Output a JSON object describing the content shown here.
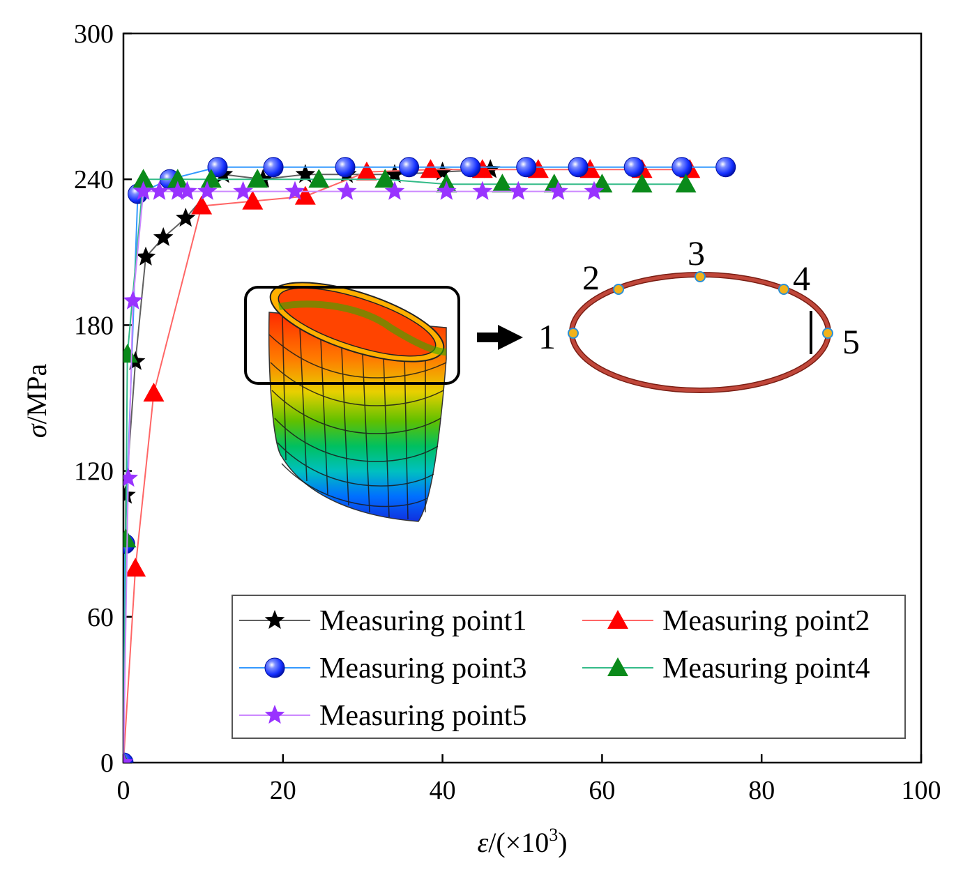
{
  "chart_data": {
    "type": "line",
    "xlabel": {
      "symbol": "ε",
      "prefix": "/(×10",
      "sup": "3",
      "suffix": ")"
    },
    "ylabel": {
      "symbol": "σ",
      "suffix": "/MPa"
    },
    "xlim": [
      0,
      100
    ],
    "ylim": [
      0,
      300
    ],
    "xticks": [
      "0",
      "20",
      "40",
      "60",
      "80",
      "100"
    ],
    "yticks": [
      "0",
      "60",
      "120",
      "180",
      "240",
      "300"
    ],
    "legend_position": "lower-right",
    "series": [
      {
        "name": "Measuring point1",
        "color": "#606060",
        "marker": "star",
        "marker_color": "#000000",
        "x": [
          0,
          0.3,
          1.5,
          2.8,
          5,
          7.8,
          12.5,
          17.5,
          22.8,
          28,
          34,
          40,
          46
        ],
        "y": [
          0,
          110,
          165,
          208,
          216,
          224,
          242,
          240,
          242,
          242,
          242,
          243,
          244
        ]
      },
      {
        "name": "Measuring point2",
        "color": "#ff6666",
        "marker": "triangle",
        "marker_color": "#ff0000",
        "x": [
          0,
          1.5,
          3.8,
          9.8,
          16.2,
          22.8,
          30.5,
          38.5,
          45,
          52,
          58.5,
          65,
          71
        ],
        "y": [
          0,
          80,
          152,
          229,
          231,
          233,
          243,
          244,
          244,
          244,
          244,
          244,
          244
        ]
      },
      {
        "name": "Measuring point3",
        "color": "#3399ff",
        "marker": "sphere",
        "marker_color": "#1a3aff",
        "x": [
          0,
          0.2,
          1.8,
          5.8,
          11.8,
          18.8,
          27.8,
          35.8,
          43.5,
          50.5,
          57,
          64,
          70,
          75.5
        ],
        "y": [
          0,
          90,
          234,
          240,
          245,
          245,
          245,
          245,
          245,
          245,
          245,
          245,
          245,
          245
        ]
      },
      {
        "name": "Measuring point4",
        "color": "#33bb88",
        "marker": "triangle",
        "marker_color": "#0a8a1a",
        "x": [
          0,
          0.3,
          0.5,
          2.5,
          6.8,
          11,
          16.8,
          24.5,
          32.8,
          40.5,
          47.5,
          54,
          60,
          65,
          70.5
        ],
        "y": [
          0,
          92,
          168,
          240,
          240,
          240,
          240,
          240,
          240,
          238,
          238,
          238,
          238,
          238,
          238
        ]
      },
      {
        "name": "Measuring point5",
        "color": "#cc88ff",
        "marker": "star",
        "marker_color": "#9933ff",
        "x": [
          0,
          0.6,
          1.2,
          2.5,
          4.5,
          6.8,
          8,
          10.5,
          15,
          21.5,
          28,
          34,
          40.5,
          45,
          49.5,
          54.5,
          59
        ],
        "y": [
          0,
          117,
          190,
          235,
          235,
          235,
          235,
          235,
          235,
          235,
          235,
          235,
          235,
          235,
          235,
          235,
          235
        ]
      }
    ]
  },
  "inset": {
    "point_labels": [
      "1",
      "2",
      "3",
      "4",
      "5"
    ],
    "ring_color": "#b83a2e",
    "point_color": "#f2b21a",
    "point_outline": "#2a8fd6",
    "icon": "deformed-cylinder-contour"
  }
}
